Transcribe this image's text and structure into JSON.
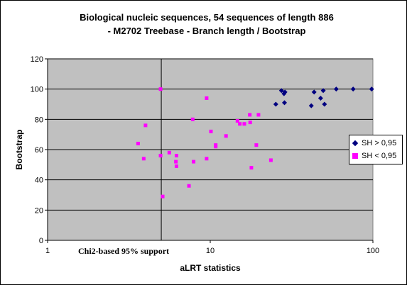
{
  "chart_data": {
    "type": "scatter",
    "title_lines": [
      "Biological nucleic sequences, 54 sequences of length 886",
      "- M2702 Treebase -  Branch length / Bootstrap"
    ],
    "xlabel": "aLRT statistics",
    "ylabel": "Bootstrap",
    "x_scale": "log",
    "xlim": [
      1,
      100
    ],
    "ylim": [
      0,
      120
    ],
    "x_ticks": [
      "1",
      "10",
      "100"
    ],
    "y_ticks": [
      "0",
      "20",
      "40",
      "60",
      "80",
      "100",
      "120"
    ],
    "grid": "horizontal",
    "plot_background": "#c0c0c0",
    "legend_position": "right",
    "annotation": {
      "text": "Chi2-based 95% support",
      "x_reference": 5.0
    },
    "series": [
      {
        "name": "SH > 0,95",
        "color": "#000080",
        "marker": "diamond",
        "points": [
          [
            25.3,
            90
          ],
          [
            27.4,
            99
          ],
          [
            28.4,
            97
          ],
          [
            28.8,
            98
          ],
          [
            28.6,
            91
          ],
          [
            41.8,
            89
          ],
          [
            43.5,
            98
          ],
          [
            47.7,
            94
          ],
          [
            49.5,
            99
          ],
          [
            50.4,
            90
          ],
          [
            59.5,
            100
          ],
          [
            75.6,
            100
          ],
          [
            98.2,
            100
          ]
        ]
      },
      {
        "name": "SH < 0,95",
        "color": "#ff00ff",
        "marker": "square",
        "points": [
          [
            3.6,
            64
          ],
          [
            3.9,
            54
          ],
          [
            4.0,
            76
          ],
          [
            4.95,
            100
          ],
          [
            4.95,
            56
          ],
          [
            5.1,
            29
          ],
          [
            5.6,
            58
          ],
          [
            6.2,
            56
          ],
          [
            6.15,
            52
          ],
          [
            6.2,
            49
          ],
          [
            7.4,
            36
          ],
          [
            7.8,
            80
          ],
          [
            7.9,
            52
          ],
          [
            9.5,
            94
          ],
          [
            9.5,
            54
          ],
          [
            10.1,
            72
          ],
          [
            10.8,
            62
          ],
          [
            10.8,
            63
          ],
          [
            12.5,
            69
          ],
          [
            14.7,
            79
          ],
          [
            15.2,
            77
          ],
          [
            16.2,
            77
          ],
          [
            17.5,
            83
          ],
          [
            17.6,
            78
          ],
          [
            17.9,
            48
          ],
          [
            19.2,
            63
          ],
          [
            19.8,
            83
          ],
          [
            23.6,
            53
          ]
        ]
      }
    ]
  }
}
